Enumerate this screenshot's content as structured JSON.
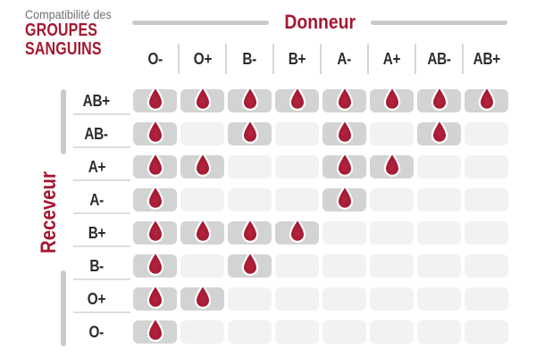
{
  "title": {
    "kicker": "Compatibilité des",
    "line1": "GROUPES",
    "line2": "SANGUINS"
  },
  "axes": {
    "donor": "Donneur",
    "recipient": "Receveur"
  },
  "chart_data": {
    "type": "heatmap",
    "title": "Compatibilité des GROUPES SANGUINS",
    "columns_axis_label": "Donneur",
    "rows_axis_label": "Receveur",
    "columns": [
      "O-",
      "O+",
      "B-",
      "B+",
      "A-",
      "A+",
      "AB-",
      "AB+"
    ],
    "rows": [
      "AB+",
      "AB-",
      "A+",
      "A-",
      "B+",
      "B-",
      "O+",
      "O-"
    ],
    "matrix": [
      [
        1,
        1,
        1,
        1,
        1,
        1,
        1,
        1
      ],
      [
        1,
        0,
        1,
        0,
        1,
        0,
        1,
        0
      ],
      [
        1,
        1,
        0,
        0,
        1,
        1,
        0,
        0
      ],
      [
        1,
        0,
        0,
        0,
        1,
        0,
        0,
        0
      ],
      [
        1,
        1,
        1,
        1,
        0,
        0,
        0,
        0
      ],
      [
        1,
        0,
        1,
        0,
        0,
        0,
        0,
        0
      ],
      [
        1,
        1,
        0,
        0,
        0,
        0,
        0,
        0
      ],
      [
        1,
        0,
        0,
        0,
        0,
        0,
        0,
        0
      ]
    ],
    "marker": "blood-drop-icon",
    "marker_meaning": "compatible"
  },
  "colors": {
    "crimson": "#A41931",
    "label_dark": "#2A2C2D",
    "kicker_gray": "#6E7072",
    "axis_line_gray": "#C9CBCB",
    "separator_gray": "#DCDEDE",
    "cell_filled": "#D2D4D3",
    "cell_empty": "#F1F2F1",
    "background": "#FFFFFF"
  }
}
